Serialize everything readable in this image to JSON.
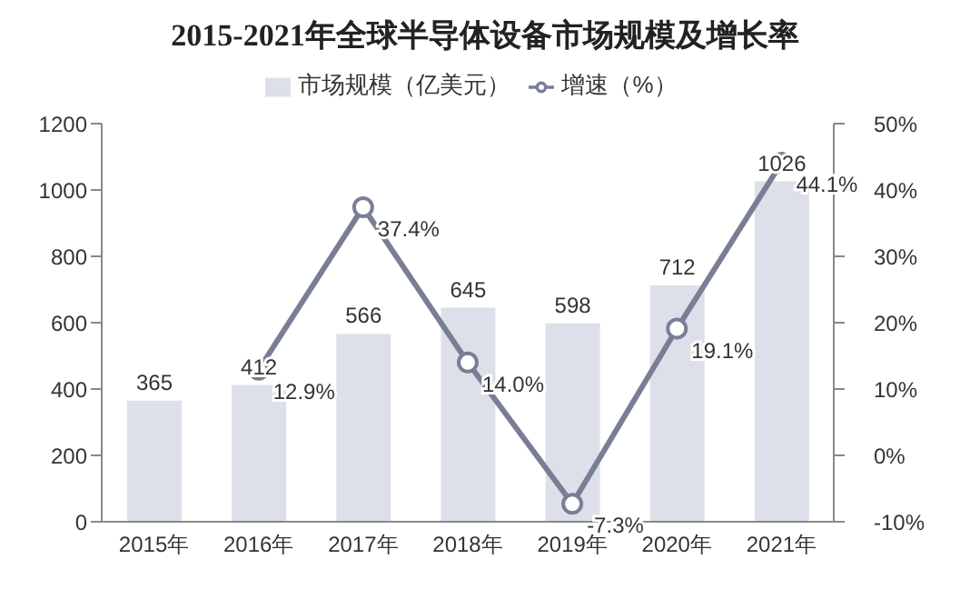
{
  "chart_data": {
    "type": "bar",
    "title": "2015-2021年全球半导体设备市场规模及增长率",
    "categories": [
      "2015年",
      "2016年",
      "2017年",
      "2018年",
      "2019年",
      "2020年",
      "2021年"
    ],
    "series": [
      {
        "name": "市场规模（亿美元）",
        "color": "#dde0e9",
        "values": [
          365,
          412,
          566,
          645,
          598,
          712,
          1026
        ],
        "value_labels": [
          "365",
          "412",
          "566",
          "645",
          "598",
          "712",
          "1026"
        ]
      },
      {
        "name": "增速（%）",
        "type": "line",
        "axis": "y2",
        "color": "#7a7e95",
        "values": [
          null,
          12.9,
          37.4,
          14.0,
          -7.3,
          19.1,
          44.1
        ],
        "value_labels": [
          null,
          "12.9%",
          "37.4%",
          "14.0%",
          "-7.3%",
          "19.1%",
          "44.1%"
        ]
      }
    ],
    "ylim": [
      0,
      1200
    ],
    "yticks": [
      0,
      200,
      400,
      600,
      800,
      1000,
      1200
    ],
    "y2lim": [
      -10,
      50
    ],
    "y2ticks": [
      {
        "value": -10,
        "label": "-10%"
      },
      {
        "value": 0,
        "label": "0%"
      },
      {
        "value": 10,
        "label": "10%"
      },
      {
        "value": 20,
        "label": "20%"
      },
      {
        "value": 30,
        "label": "30%"
      },
      {
        "value": 40,
        "label": "40%"
      },
      {
        "value": 50,
        "label": "50%"
      }
    ],
    "marker": "circle",
    "legend": "top",
    "grid": false
  }
}
